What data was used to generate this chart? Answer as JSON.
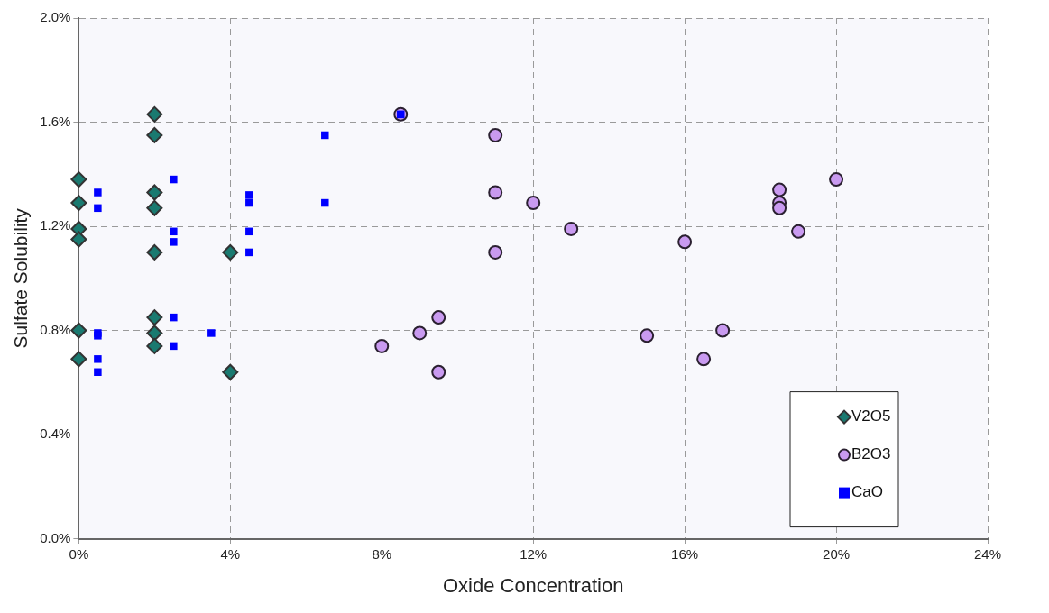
{
  "chart_data": {
    "type": "scatter",
    "xlabel": "Oxide Concentration",
    "ylabel": "Sulfate Solubility",
    "xlim": [
      0,
      24
    ],
    "xticks": [
      {
        "value": 0,
        "label": "0%"
      },
      {
        "value": 4,
        "label": "4%"
      },
      {
        "value": 8,
        "label": "8%"
      },
      {
        "value": 12,
        "label": "12%"
      },
      {
        "value": 16,
        "label": "16%"
      },
      {
        "value": 20,
        "label": "20%"
      },
      {
        "value": 24,
        "label": "24%"
      }
    ],
    "ylim": [
      0,
      2
    ],
    "yticks": [
      {
        "value": 0,
        "label": "0.0%"
      },
      {
        "value": 0.4,
        "label": "0.4%"
      },
      {
        "value": 0.8,
        "label": "0.8%"
      },
      {
        "value": 1.2,
        "label": "1.2%"
      },
      {
        "value": 1.6,
        "label": "1.6%"
      },
      {
        "value": 2,
        "label": "2.0%"
      }
    ],
    "grid": true,
    "legend": "bottom right",
    "series": [
      {
        "name": "V2O5",
        "color": "#1a7a70",
        "marker": "diamond",
        "x": [
          0,
          0,
          0,
          0,
          0,
          0,
          2,
          2,
          2,
          2,
          2,
          2,
          2,
          2,
          4,
          4
        ],
        "values": [
          1.38,
          1.29,
          1.19,
          1.15,
          0.8,
          0.69,
          1.63,
          1.55,
          1.33,
          1.27,
          1.1,
          0.85,
          0.79,
          0.74,
          1.1,
          0.64
        ]
      },
      {
        "name": "B2O3",
        "color": "#c99af0",
        "marker": "circle",
        "x": [
          8.5,
          11,
          11,
          11,
          12,
          13,
          9.5,
          9.5,
          9,
          8,
          15,
          16,
          16.5,
          17,
          18.5,
          18.5,
          18.5,
          19,
          20
        ],
        "values": [
          1.63,
          1.55,
          1.33,
          1.1,
          1.29,
          1.19,
          0.85,
          0.64,
          0.79,
          0.74,
          0.78,
          1.14,
          0.69,
          0.8,
          1.34,
          1.29,
          1.27,
          1.18,
          1.38
        ]
      },
      {
        "name": "CaO",
        "color": "#0000ff",
        "marker": "square",
        "x": [
          0.5,
          0.5,
          0.5,
          0.5,
          0.5,
          0.5,
          2.5,
          2.5,
          2.5,
          2.5,
          2.5,
          3.5,
          4.5,
          4.5,
          4.5,
          4.5,
          6.5,
          6.5,
          8.5
        ],
        "values": [
          1.33,
          1.27,
          0.79,
          0.78,
          0.69,
          0.64,
          1.38,
          1.18,
          1.14,
          0.85,
          0.74,
          0.79,
          1.32,
          1.29,
          1.18,
          1.1,
          1.55,
          1.29,
          1.63
        ]
      }
    ]
  }
}
